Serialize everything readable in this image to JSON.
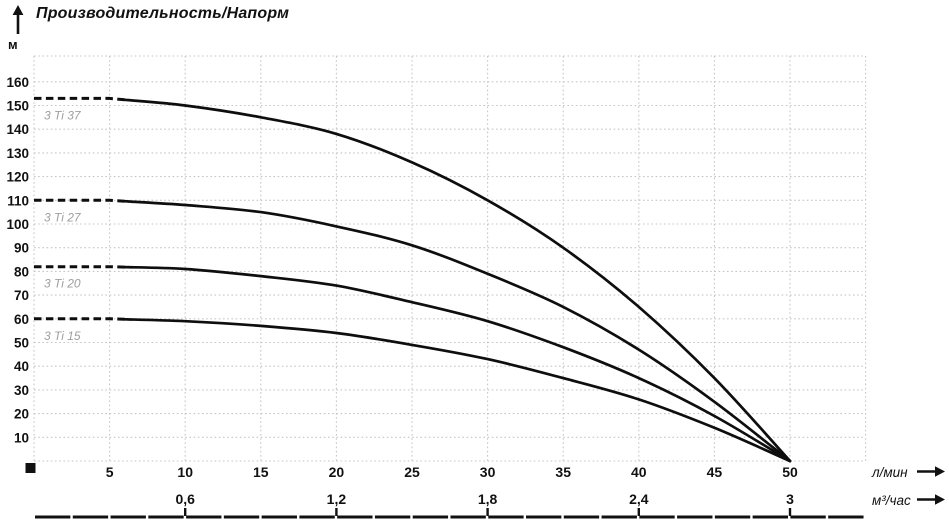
{
  "header": {
    "title": "Производительность/Напорм",
    "y_axis_unit": "м"
  },
  "chart_data": {
    "type": "line",
    "title": "Производительность/Напорм",
    "y_axis": {
      "unit": "м",
      "ticks": [
        10,
        20,
        30,
        40,
        50,
        60,
        70,
        80,
        90,
        100,
        110,
        120,
        130,
        140,
        150,
        160
      ],
      "range": [
        0,
        171
      ]
    },
    "x_axis_primary": {
      "unit": "л/мин",
      "ticks": [
        5,
        10,
        15,
        20,
        25,
        30,
        35,
        40,
        45,
        50
      ],
      "range": [
        0,
        55
      ]
    },
    "x_axis_secondary": {
      "unit": "м³/час",
      "ticks": [
        {
          "label": "0,6",
          "at_lmin": 10
        },
        {
          "label": "1,2",
          "at_lmin": 20
        },
        {
          "label": "1,8",
          "at_lmin": 30
        },
        {
          "label": "2,4",
          "at_lmin": 40
        },
        {
          "label": "3",
          "at_lmin": 50
        }
      ]
    },
    "x": [
      0,
      5,
      10,
      15,
      20,
      25,
      30,
      35,
      40,
      45,
      50
    ],
    "series": [
      {
        "name": "3 Ti 37",
        "values": [
          153,
          153,
          150,
          145,
          138,
          126,
          110,
          90,
          65,
          35,
          0
        ]
      },
      {
        "name": "3 Ti 27",
        "values": [
          110,
          110,
          108,
          105,
          99,
          91,
          79,
          65,
          47,
          25,
          0
        ]
      },
      {
        "name": "3 Ti 20",
        "values": [
          82,
          82,
          81,
          78,
          74,
          67,
          59,
          48,
          35,
          19,
          0
        ]
      },
      {
        "name": "3 Ti 15",
        "values": [
          60,
          60,
          59,
          57,
          54,
          49,
          43,
          35,
          26,
          14,
          0
        ]
      }
    ],
    "dashed_until": 6,
    "grid": {
      "visible": true,
      "style": "dotted"
    },
    "legend": "inline-labels-left",
    "colors": {
      "curve": "#0e0e0e",
      "grid": "#c6c6c6",
      "series_label": "#9e9e9e",
      "text": "#111111"
    }
  }
}
